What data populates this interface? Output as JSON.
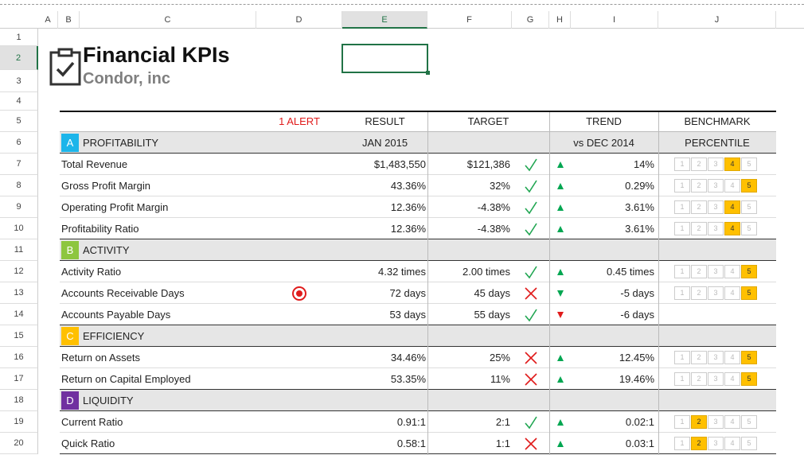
{
  "grid": {
    "columns": [
      "A",
      "B",
      "C",
      "D",
      "E",
      "F",
      "G",
      "H",
      "I",
      "J"
    ],
    "rows": [
      1,
      2,
      3,
      4,
      5,
      6,
      7,
      8,
      9,
      10,
      11,
      12,
      13,
      14,
      15,
      16,
      17,
      18,
      19,
      20
    ]
  },
  "header": {
    "title": "Financial KPIs",
    "subtitle": "Condor, inc"
  },
  "table": {
    "alert": "1 ALERT",
    "columns": [
      "RESULT",
      "TARGET",
      "TREND",
      "BENCHMARK"
    ],
    "period": {
      "result": "JAN 2015",
      "trend": "vs DEC 2014",
      "benchmark": "PERCENTILE"
    },
    "benchmark_scale": [
      "1",
      "2",
      "3",
      "4",
      "5"
    ],
    "sections": [
      {
        "letter": "A",
        "name": "PROFITABILITY",
        "color": "#1cb5ea",
        "rows": [
          {
            "label": "Total Revenue",
            "result": "$1,483,550",
            "target": "$121,386",
            "status": "pass",
            "trend": "up",
            "trend_color": "#00a651",
            "change": "14%",
            "benchmark": 4
          },
          {
            "label": "Gross Profit Margin",
            "result": "43.36%",
            "target": "32%",
            "status": "pass",
            "trend": "up",
            "trend_color": "#00a651",
            "change": "0.29%",
            "benchmark": 5
          },
          {
            "label": "Operating Profit Margin",
            "result": "12.36%",
            "target": "-4.38%",
            "status": "pass",
            "trend": "up",
            "trend_color": "#00a651",
            "change": "3.61%",
            "benchmark": 4
          },
          {
            "label": "Profitability Ratio",
            "result": "12.36%",
            "target": "-4.38%",
            "status": "pass",
            "trend": "up",
            "trend_color": "#00a651",
            "change": "3.61%",
            "benchmark": 4
          }
        ]
      },
      {
        "letter": "B",
        "name": "ACTIVITY",
        "color": "#8dc63f",
        "rows": [
          {
            "label": "Activity Ratio",
            "result": "4.32 times",
            "target": "2.00 times",
            "status": "pass",
            "trend": "up",
            "trend_color": "#00a651",
            "change": "0.45 times",
            "benchmark": 5
          },
          {
            "label": "Accounts Receivable Days",
            "result": "72 days",
            "target": "45 days",
            "status": "fail",
            "trend": "down",
            "trend_color": "#00a651",
            "change": "-5 days",
            "benchmark": 5,
            "alert": true
          },
          {
            "label": "Accounts Payable Days",
            "result": "53 days",
            "target": "55 days",
            "status": "pass",
            "trend": "down",
            "trend_color": "#e01b1b",
            "change": "-6 days",
            "benchmark": null
          }
        ]
      },
      {
        "letter": "C",
        "name": "EFFICIENCY",
        "color": "#ffc000",
        "rows": [
          {
            "label": "Return on Assets",
            "result": "34.46%",
            "target": "25%",
            "status": "fail",
            "trend": "up",
            "trend_color": "#00a651",
            "change": "12.45%",
            "benchmark": 5
          },
          {
            "label": "Return on Capital Employed",
            "result": "53.35%",
            "target": "11%",
            "status": "fail",
            "trend": "up",
            "trend_color": "#00a651",
            "change": "19.46%",
            "benchmark": 5
          }
        ]
      },
      {
        "letter": "D",
        "name": "LIQUIDITY",
        "color": "#7030a0",
        "rows": [
          {
            "label": "Current Ratio",
            "result": "0.91:1",
            "target": "2:1",
            "status": "pass",
            "trend": "up",
            "trend_color": "#00a651",
            "change": "0.02:1",
            "benchmark": 2
          },
          {
            "label": "Quick Ratio",
            "result": "0.58:1",
            "target": "1:1",
            "status": "fail",
            "trend": "up",
            "trend_color": "#00a651",
            "change": "0.03:1",
            "benchmark": 2
          }
        ]
      }
    ]
  }
}
